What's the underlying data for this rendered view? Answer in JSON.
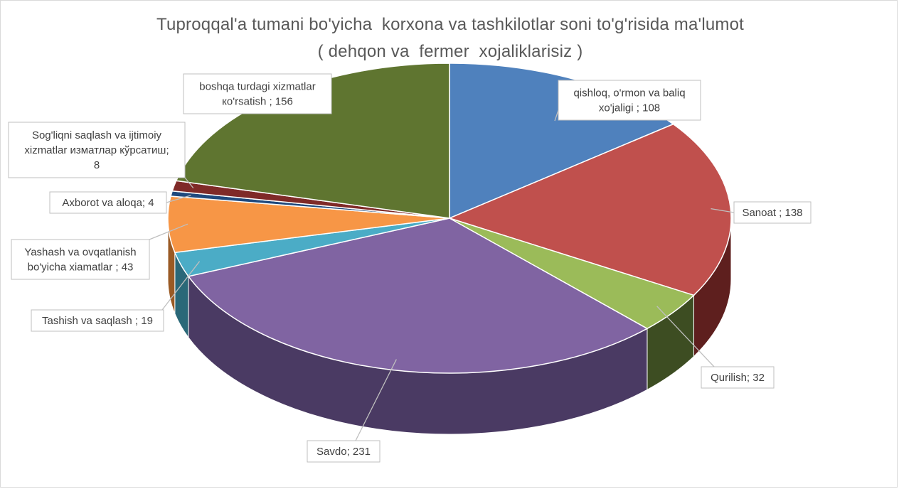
{
  "chart_data": {
    "type": "pie",
    "title_lines": [
      "Tuproqqal'a tumani bo'yicha  korxona va tashkilotlar soni to'g'risida ma'lumot",
      "( dehqon va  fermer  xojaliklarisiz )"
    ],
    "slices": [
      {
        "label_lines": [
          "qishloq, o'rmon va baliq",
          "xo'jaligi   ; 108"
        ],
        "value": 108,
        "color": "#4f81bd",
        "side_color": "#2c4c73"
      },
      {
        "label_lines": [
          "Sanoat ; 138"
        ],
        "value": 138,
        "color": "#c0504d",
        "side_color": "#5e1f1e"
      },
      {
        "label_lines": [
          "Qurilish; 32"
        ],
        "value": 32,
        "color": "#9bbb59",
        "side_color": "#3d4d22"
      },
      {
        "label_lines": [
          "Savdo; 231"
        ],
        "value": 231,
        "color": "#8064a2",
        "side_color": "#4a3a63"
      },
      {
        "label_lines": [
          "Tashish va saqlash ; 19"
        ],
        "value": 19,
        "color": "#4bacc6",
        "side_color": "#2a6878"
      },
      {
        "label_lines": [
          "Yashash va ovqatlanish",
          "bo'yicha xiamatlar ; 43"
        ],
        "value": 43,
        "color": "#f79646",
        "side_color": "#9a5a24"
      },
      {
        "label_lines": [
          "Axborot va aloqa; 4"
        ],
        "value": 4,
        "color": "#1f497d",
        "side_color": "#12294a"
      },
      {
        "label_lines": [
          "Sog'liqni saqlash va ijtimoiy",
          "xizmatlar изматлар кўрсатиш;",
          "8"
        ],
        "value": 8,
        "color": "#7f2a28",
        "side_color": "#4a1716"
      },
      {
        "label_lines": [
          "boshqa turdagi  xizmatlar",
          "ко'rsatish ; 156"
        ],
        "value": 156,
        "color": "#5f7530",
        "side_color": "#36441b"
      }
    ]
  }
}
